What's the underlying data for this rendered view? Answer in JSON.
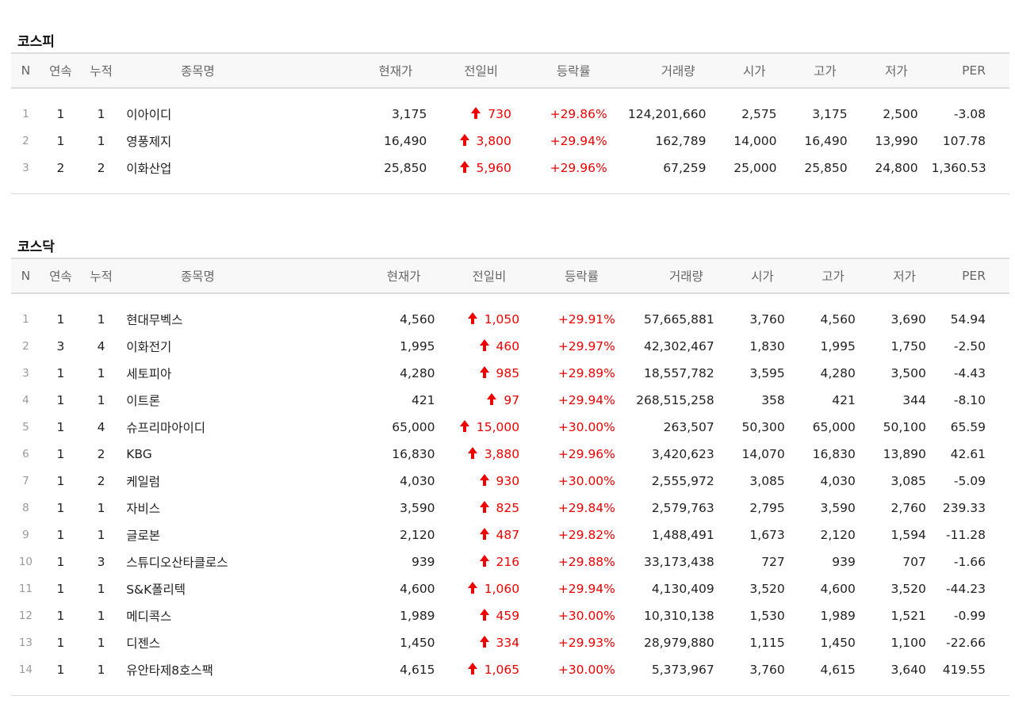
{
  "headers": [
    "N",
    "연속",
    "누적",
    "종목명",
    "현재가",
    "전일비",
    "등락률",
    "거래량",
    "시가",
    "고가",
    "저가",
    "PER"
  ],
  "kospi": {
    "title": "코스피",
    "rows": [
      {
        "n": "1",
        "cont": "1",
        "cum": "1",
        "name": "이아이디",
        "price": "3,175",
        "change": "730",
        "rate": "+29.86%",
        "volume": "124,201,660",
        "open": "2,575",
        "high": "3,175",
        "low": "2,500",
        "per": "-3.08"
      },
      {
        "n": "2",
        "cont": "1",
        "cum": "1",
        "name": "영풍제지",
        "price": "16,490",
        "change": "3,800",
        "rate": "+29.94%",
        "volume": "162,789",
        "open": "14,000",
        "high": "16,490",
        "low": "13,990",
        "per": "107.78"
      },
      {
        "n": "3",
        "cont": "2",
        "cum": "2",
        "name": "이화산업",
        "price": "25,850",
        "change": "5,960",
        "rate": "+29.96%",
        "volume": "67,259",
        "open": "25,000",
        "high": "25,850",
        "low": "24,800",
        "per": "1,360.53"
      }
    ]
  },
  "kosdaq": {
    "title": "코스닥",
    "rows": [
      {
        "n": "1",
        "cont": "1",
        "cum": "1",
        "name": "현대무벡스",
        "price": "4,560",
        "change": "1,050",
        "rate": "+29.91%",
        "volume": "57,665,881",
        "open": "3,760",
        "high": "4,560",
        "low": "3,690",
        "per": "54.94"
      },
      {
        "n": "2",
        "cont": "3",
        "cum": "4",
        "name": "이화전기",
        "price": "1,995",
        "change": "460",
        "rate": "+29.97%",
        "volume": "42,302,467",
        "open": "1,830",
        "high": "1,995",
        "low": "1,750",
        "per": "-2.50"
      },
      {
        "n": "3",
        "cont": "1",
        "cum": "1",
        "name": "세토피아",
        "price": "4,280",
        "change": "985",
        "rate": "+29.89%",
        "volume": "18,557,782",
        "open": "3,595",
        "high": "4,280",
        "low": "3,500",
        "per": "-4.43"
      },
      {
        "n": "4",
        "cont": "1",
        "cum": "1",
        "name": "이트론",
        "price": "421",
        "change": "97",
        "rate": "+29.94%",
        "volume": "268,515,258",
        "open": "358",
        "high": "421",
        "low": "344",
        "per": "-8.10"
      },
      {
        "n": "5",
        "cont": "1",
        "cum": "4",
        "name": "슈프리마아이디",
        "price": "65,000",
        "change": "15,000",
        "rate": "+30.00%",
        "volume": "263,507",
        "open": "50,300",
        "high": "65,000",
        "low": "50,100",
        "per": "65.59"
      },
      {
        "n": "6",
        "cont": "1",
        "cum": "2",
        "name": "KBG",
        "price": "16,830",
        "change": "3,880",
        "rate": "+29.96%",
        "volume": "3,420,623",
        "open": "14,070",
        "high": "16,830",
        "low": "13,890",
        "per": "42.61"
      },
      {
        "n": "7",
        "cont": "1",
        "cum": "2",
        "name": "케일럼",
        "price": "4,030",
        "change": "930",
        "rate": "+30.00%",
        "volume": "2,555,972",
        "open": "3,085",
        "high": "4,030",
        "low": "3,085",
        "per": "-5.09"
      },
      {
        "n": "8",
        "cont": "1",
        "cum": "1",
        "name": "자비스",
        "price": "3,590",
        "change": "825",
        "rate": "+29.84%",
        "volume": "2,579,763",
        "open": "2,795",
        "high": "3,590",
        "low": "2,760",
        "per": "239.33"
      },
      {
        "n": "9",
        "cont": "1",
        "cum": "1",
        "name": "글로본",
        "price": "2,120",
        "change": "487",
        "rate": "+29.82%",
        "volume": "1,488,491",
        "open": "1,673",
        "high": "2,120",
        "low": "1,594",
        "per": "-11.28"
      },
      {
        "n": "10",
        "cont": "1",
        "cum": "3",
        "name": "스튜디오산타클로스",
        "price": "939",
        "change": "216",
        "rate": "+29.88%",
        "volume": "33,173,438",
        "open": "727",
        "high": "939",
        "low": "707",
        "per": "-1.66"
      },
      {
        "n": "11",
        "cont": "1",
        "cum": "1",
        "name": "S&K폴리텍",
        "price": "4,600",
        "change": "1,060",
        "rate": "+29.94%",
        "volume": "4,130,409",
        "open": "3,520",
        "high": "4,600",
        "low": "3,520",
        "per": "-44.23"
      },
      {
        "n": "12",
        "cont": "1",
        "cum": "1",
        "name": "메디콕스",
        "price": "1,989",
        "change": "459",
        "rate": "+30.00%",
        "volume": "10,310,138",
        "open": "1,530",
        "high": "1,989",
        "low": "1,521",
        "per": "-0.99"
      },
      {
        "n": "13",
        "cont": "1",
        "cum": "1",
        "name": "디젠스",
        "price": "1,450",
        "change": "334",
        "rate": "+29.93%",
        "volume": "28,979,880",
        "open": "1,115",
        "high": "1,450",
        "low": "1,100",
        "per": "-22.66"
      },
      {
        "n": "14",
        "cont": "1",
        "cum": "1",
        "name": "유안타제8호스팩",
        "price": "4,615",
        "change": "1,065",
        "rate": "+30.00%",
        "volume": "5,373,967",
        "open": "3,760",
        "high": "4,615",
        "low": "3,640",
        "per": "419.55"
      }
    ]
  },
  "colors": {
    "up": "#e00000",
    "header_bg": "#f8f8f8",
    "border": "#dcdcdc"
  },
  "icons": {
    "change_direction": "arrow-up-icon"
  }
}
